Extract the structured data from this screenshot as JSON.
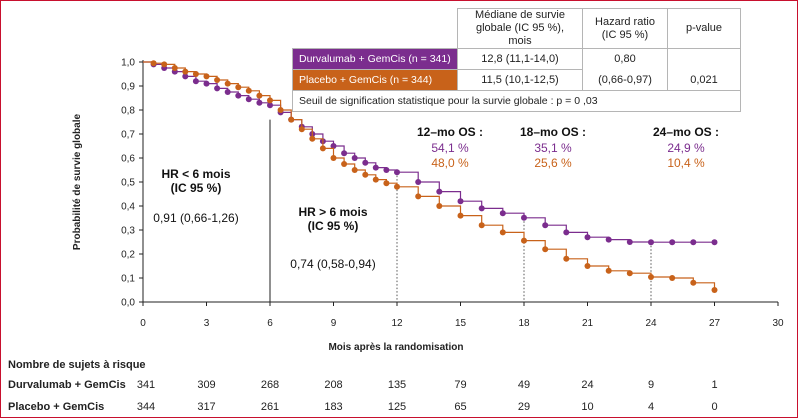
{
  "colors": {
    "durva": "#7b2d8e",
    "placebo": "#c8621a",
    "frame": "#c8102e"
  },
  "table": {
    "header_median": "Médiane de survie globale (IC 95 %), mois",
    "header_hr": "Hazard ratio (IC 95 %)",
    "header_p": "p-value",
    "rows": [
      {
        "arm": "Durvalumab + GemCis (n = 341)",
        "median": "12,8 (11,1-14,0)"
      },
      {
        "arm": "Placebo + GemCis (n = 344)",
        "median": "11,5 (10,1-12,5)"
      }
    ],
    "hr_value": "0,80",
    "hr_ci": "(0,66-0,97)",
    "p_value": "0,021",
    "footnote": "Seuil de signification statistique pour la survie globale : p = 0 ,03"
  },
  "annotations": {
    "hr_before_title1": "HR < 6 mois",
    "hr_before_title2": "(IC 95 %)",
    "hr_before_value": "0,91 (0,66-1,26)",
    "hr_after_title1": "HR > 6 mois",
    "hr_after_title2": "(IC 95 %)",
    "hr_after_value": "0,74 (0,58-0,94)",
    "os12_label": "12–mo OS :",
    "os12_durva": "54,1 %",
    "os12_placebo": "48,0 %",
    "os18_label": "18–mo OS :",
    "os18_durva": "35,1 %",
    "os18_placebo": "25,6 %",
    "os24_label": "24–mo OS :",
    "os24_durva": "24,9 %",
    "os24_placebo": "10,4 %"
  },
  "risk": {
    "title": "Nombre de sujets à risque",
    "times": [
      0,
      3,
      6,
      9,
      12,
      15,
      18,
      21,
      24,
      27
    ],
    "rows": [
      {
        "label": "Durvalumab + GemCis",
        "values": [
          "341",
          "309",
          "268",
          "208",
          "135",
          "79",
          "49",
          "24",
          "9",
          "1"
        ]
      },
      {
        "label": "Placebo + GemCis",
        "values": [
          "344",
          "317",
          "261",
          "183",
          "125",
          "65",
          "29",
          "10",
          "4",
          "0"
        ]
      }
    ]
  },
  "chart_data": {
    "type": "line",
    "xlabel": "Mois après la randomisation",
    "ylabel": "Probabilité de survie globale",
    "xlim": [
      0,
      30
    ],
    "ylim": [
      0,
      1
    ],
    "xticks": [
      "0",
      "3",
      "6",
      "9",
      "12",
      "15",
      "18",
      "21",
      "24",
      "27",
      "30"
    ],
    "yticks": [
      "0,0",
      "0,1",
      "0,2",
      "0,3",
      "0,4",
      "0,5",
      "0,6",
      "0,7",
      "0,8",
      "0,9",
      "1,0"
    ],
    "reference_lines_x": [
      6,
      12,
      18,
      24
    ],
    "series": [
      {
        "name": "Durvalumab + GemCis",
        "x": [
          0,
          0.5,
          1,
          1.5,
          2,
          2.5,
          3,
          3.5,
          4,
          4.5,
          5,
          5.5,
          6,
          6.5,
          7,
          7.5,
          8,
          8.5,
          9,
          9.5,
          10,
          10.5,
          11,
          11.5,
          12,
          13,
          14,
          15,
          16,
          17,
          18,
          19,
          20,
          21,
          22,
          23,
          24,
          25,
          26,
          27
        ],
        "y": [
          1.0,
          0.99,
          0.975,
          0.96,
          0.94,
          0.92,
          0.91,
          0.89,
          0.875,
          0.86,
          0.845,
          0.83,
          0.82,
          0.79,
          0.76,
          0.73,
          0.7,
          0.67,
          0.65,
          0.62,
          0.6,
          0.58,
          0.56,
          0.55,
          0.541,
          0.5,
          0.46,
          0.42,
          0.39,
          0.37,
          0.351,
          0.32,
          0.29,
          0.27,
          0.26,
          0.25,
          0.249,
          0.249,
          0.249,
          0.249
        ]
      },
      {
        "name": "Placebo + GemCis",
        "x": [
          0,
          0.5,
          1,
          1.5,
          2,
          2.5,
          3,
          3.5,
          4,
          4.5,
          5,
          5.5,
          6,
          6.5,
          7,
          7.5,
          8,
          8.5,
          9,
          9.5,
          10,
          10.5,
          11,
          11.5,
          12,
          13,
          14,
          15,
          16,
          17,
          18,
          19,
          20,
          21,
          22,
          23,
          24,
          25,
          26,
          27
        ],
        "y": [
          1.0,
          0.995,
          0.99,
          0.975,
          0.96,
          0.95,
          0.94,
          0.925,
          0.91,
          0.895,
          0.88,
          0.86,
          0.84,
          0.8,
          0.76,
          0.72,
          0.68,
          0.64,
          0.6,
          0.575,
          0.55,
          0.53,
          0.51,
          0.495,
          0.48,
          0.44,
          0.4,
          0.36,
          0.32,
          0.29,
          0.256,
          0.22,
          0.18,
          0.15,
          0.13,
          0.12,
          0.104,
          0.1,
          0.08,
          0.05
        ]
      }
    ]
  }
}
